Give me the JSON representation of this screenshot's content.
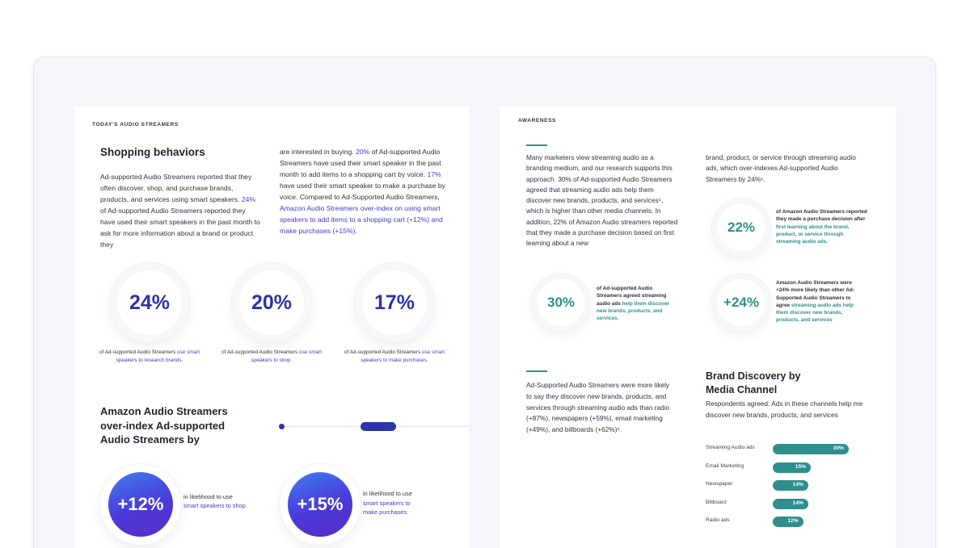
{
  "left": {
    "eyebrow": "TODAY'S AUDIO STREAMERS",
    "title": "Shopping behaviors",
    "col1": {
      "p1": "Ad-supported Audio Streamers reported that they often discover, shop, and purchase brands, products, and services using smart speakers.",
      "p1_hl": "24%",
      "p1_tail": "of Ad-supported Audio Streamers reported they have used their smart speakers in the past month to ask for more information about a brand or product they"
    },
    "col2": {
      "a": "are interested in buying.",
      "a_hl": "20%",
      "b": "of Ad-supported Audio Streamers have used their smart speaker in the past month to add items to a shopping cart by voice.",
      "b_hl": "17%",
      "c": "have used their smart speaker to make a purchase by voice. Compared to Ad-Supported Audio Streamers,",
      "c_hl": "Amazon Audio Streamers over-index on using smart speakers to add items to a shopping cart (+12%) and make purchases (+15%)."
    },
    "stats": [
      {
        "value": "24%",
        "caption": "of Ad-supported Audio Streamers",
        "caption_hl": "use smart speakers to research brands."
      },
      {
        "value": "20%",
        "caption": "of Ad-supported Audio Streamers",
        "caption_hl": "use smart speakers to shop."
      },
      {
        "value": "17%",
        "caption": "of Ad-supported Audio Streamers",
        "caption_hl": "use smart speakers to make purchases."
      }
    ],
    "overindex_title_1": "Amazon Audio Streamers",
    "overindex_title_2": "over-index Ad-supported",
    "overindex_title_3": "Audio Streamers by",
    "overindex": [
      {
        "value": "+12%",
        "text": "in likelihood to use",
        "hl": "smart speakers to shop."
      },
      {
        "value": "+15%",
        "text": "in likelihood to use",
        "hl1": "smart speakers to",
        "hl2": "make purchases."
      }
    ]
  },
  "right": {
    "eyebrow": "AWARENESS",
    "col1": "Many marketers view streaming audio as a branding medium, and our research supports this approach. 30% of Ad-supported Audio Streamers agreed that streaming audio ads help them discover new brands, products, and services⁵, which is higher than other media channels. In addition, 22% of Amazon Audio streamers reported that they made a purchase decision based on first learning about a new",
    "col2": "brand, product, or service through streaming audio ads, which over-indexes Ad-supported Audio Streamers by 24%¹.",
    "stat22": {
      "value": "22%",
      "text": "of Amazon Audio Streamers reported they made a purchase decision after",
      "hl": "first learning about the brand, product, or service through streaming audio ads."
    },
    "stat30": {
      "value": "30%",
      "text": "of Ad-supported Audio Streamers agreed streaming audio ads",
      "hl": "help them discover new brands, products, and services."
    },
    "stat24": {
      "value": "+24%",
      "text": "Amazon Audio Streamers were +24% more likely than other Ad-Supported Audio Streamers to agree",
      "hl": "streaming audio ads help them discover new brands, products, and services"
    },
    "discover_para": "Ad-Supported Audio Streamers were more likely to say they discover new brands, products, and services through streaming audio ads than radio (+87%), newspapers (+59%), email marketing (+49%), and billboards (+62%)⁵.",
    "chart_title_1": "Brand Discovery by",
    "chart_title_2": "Media Channel",
    "chart_subtitle": "Respondents agreed: Ads in these channels help me discover new brands, products, and services"
  },
  "chart_data": {
    "type": "bar",
    "title": "Brand Discovery by Media Channel",
    "categories": [
      "Streaming Audio ads",
      "Email Marketing",
      "Newspaper",
      "Billboard",
      "Radio ads"
    ],
    "values": [
      30,
      15,
      14,
      14,
      12
    ],
    "value_labels": [
      "30%",
      "15%",
      "14%",
      "14%",
      "12%"
    ],
    "xlim": [
      0,
      30
    ],
    "orientation": "horizontal",
    "color": "#2f8f8c"
  },
  "colors": {
    "blue": "#3b3fc4",
    "teal": "#2f8f8c",
    "ring_text": "#2d33a8"
  }
}
